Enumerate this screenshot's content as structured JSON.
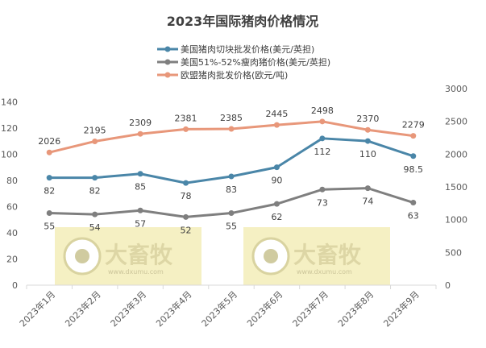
{
  "chart_data": {
    "type": "line",
    "title": "2023年国际猪肉价格情况",
    "categories": [
      "2023年1月",
      "2023年2月",
      "2023年3月",
      "2023年4月",
      "2023年5月",
      "2023年6月",
      "2023年7月",
      "2023年8月",
      "2023年9月"
    ],
    "series": [
      {
        "name": "美国猪肉切块批发价格(美元/英担)",
        "axis": "left",
        "color": "#4a86a8",
        "values": [
          82,
          82,
          85,
          78,
          83,
          90,
          112,
          110,
          98.5
        ],
        "label_position": "below"
      },
      {
        "name": "美国51%-52%瘦肉猪价格(美元/英担)",
        "axis": "left",
        "color": "#7f7f7f",
        "values": [
          55,
          54,
          57,
          52,
          55,
          62,
          73,
          74,
          63
        ],
        "label_position": "below"
      },
      {
        "name": "欧盟猪肉批发价格(欧元/吨)",
        "axis": "right",
        "color": "#e8977a",
        "values": [
          2026,
          2195,
          2309,
          2381,
          2385,
          2445,
          2498,
          2370,
          2279
        ],
        "label_position": "above"
      }
    ],
    "left_axis": {
      "range": [
        0,
        150
      ],
      "ticks": [
        0,
        20,
        40,
        60,
        80,
        100,
        120,
        140
      ]
    },
    "right_axis": {
      "range": [
        0,
        3000
      ],
      "ticks": [
        0,
        500,
        1000,
        1500,
        2000,
        2500,
        3000
      ]
    },
    "grid": false,
    "legend_placement": "top"
  },
  "watermark": {
    "brand": "大畜牧",
    "url": "www.dxumu.com",
    "color": "#f3edb8"
  }
}
